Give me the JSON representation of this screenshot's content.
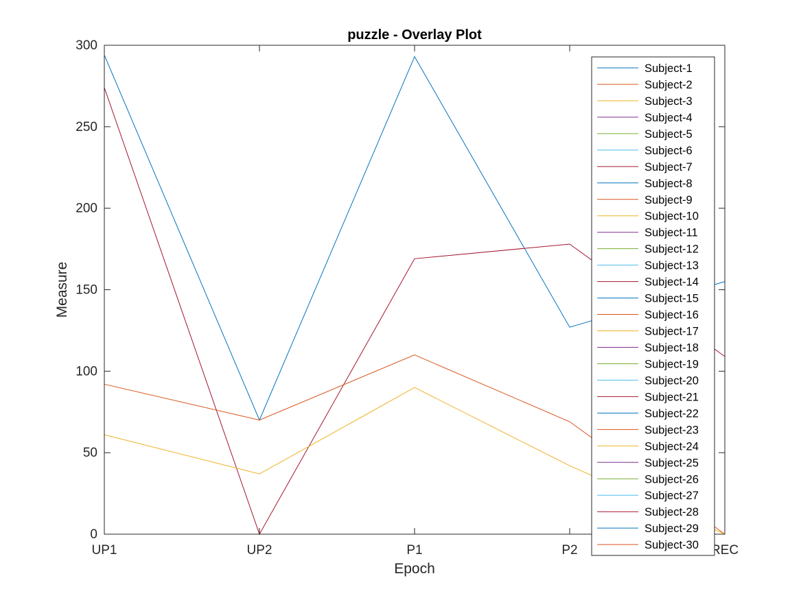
{
  "chart_data": {
    "type": "line",
    "title": "puzzle - Overlay Plot",
    "xlabel": "Epoch",
    "ylabel": "Measure",
    "categories": [
      "UP1",
      "UP2",
      "P1",
      "P2",
      "REC"
    ],
    "ylim": [
      0,
      300
    ],
    "yticks": [
      "0",
      "50",
      "100",
      "150",
      "200",
      "250",
      "300"
    ],
    "grid": false,
    "legend_position": "right-inside",
    "series": [
      {
        "name": "Subject-1",
        "color": "#0072BD",
        "values": [
          294,
          70,
          293,
          127,
          155
        ]
      },
      {
        "name": "Subject-2",
        "color": "#D95319",
        "values": [
          0,
          0,
          0,
          0,
          0
        ]
      },
      {
        "name": "Subject-3",
        "color": "#EDB120",
        "values": [
          0,
          0,
          0,
          0,
          0
        ]
      },
      {
        "name": "Subject-4",
        "color": "#7E2F8E",
        "values": [
          0,
          0,
          0,
          0,
          0
        ]
      },
      {
        "name": "Subject-5",
        "color": "#77AC30",
        "values": [
          0,
          0,
          0,
          0,
          0
        ]
      },
      {
        "name": "Subject-6",
        "color": "#4DBEEE",
        "values": [
          0,
          0,
          0,
          0,
          0
        ]
      },
      {
        "name": "Subject-7",
        "color": "#A2142F",
        "values": [
          0,
          0,
          0,
          0,
          0
        ]
      },
      {
        "name": "Subject-8",
        "color": "#0072BD",
        "values": [
          0,
          0,
          0,
          0,
          0
        ]
      },
      {
        "name": "Subject-9",
        "color": "#D95319",
        "values": [
          0,
          0,
          0,
          0,
          0
        ]
      },
      {
        "name": "Subject-10",
        "color": "#EDB120",
        "values": [
          0,
          0,
          0,
          0,
          0
        ]
      },
      {
        "name": "Subject-11",
        "color": "#7E2F8E",
        "values": [
          0,
          0,
          0,
          0,
          0
        ]
      },
      {
        "name": "Subject-12",
        "color": "#77AC30",
        "values": [
          0,
          0,
          0,
          0,
          0
        ]
      },
      {
        "name": "Subject-13",
        "color": "#4DBEEE",
        "values": [
          0,
          0,
          0,
          0,
          0
        ]
      },
      {
        "name": "Subject-14",
        "color": "#A2142F",
        "values": [
          0,
          0,
          0,
          0,
          0
        ]
      },
      {
        "name": "Subject-15",
        "color": "#0072BD",
        "values": [
          0,
          0,
          0,
          0,
          0
        ]
      },
      {
        "name": "Subject-16",
        "color": "#D95319",
        "values": [
          0,
          0,
          0,
          0,
          0
        ]
      },
      {
        "name": "Subject-17",
        "color": "#EDB120",
        "values": [
          0,
          0,
          0,
          0,
          0
        ]
      },
      {
        "name": "Subject-18",
        "color": "#7E2F8E",
        "values": [
          0,
          0,
          0,
          0,
          0
        ]
      },
      {
        "name": "Subject-19",
        "color": "#77AC30",
        "values": [
          0,
          0,
          0,
          0,
          0
        ]
      },
      {
        "name": "Subject-20",
        "color": "#4DBEEE",
        "values": [
          0,
          0,
          0,
          0,
          0
        ]
      },
      {
        "name": "Subject-21",
        "color": "#A2142F",
        "values": [
          274,
          0,
          169,
          178,
          109
        ]
      },
      {
        "name": "Subject-22",
        "color": "#0072BD",
        "values": [
          0,
          0,
          0,
          0,
          0
        ]
      },
      {
        "name": "Subject-23",
        "color": "#D95319",
        "values": [
          92,
          70,
          110,
          69,
          0
        ]
      },
      {
        "name": "Subject-24",
        "color": "#EDB120",
        "values": [
          61,
          37,
          90,
          42,
          0
        ]
      },
      {
        "name": "Subject-25",
        "color": "#7E2F8E",
        "values": [
          0,
          0,
          0,
          0,
          0
        ]
      },
      {
        "name": "Subject-26",
        "color": "#77AC30",
        "values": [
          0,
          0,
          0,
          0,
          0
        ]
      },
      {
        "name": "Subject-27",
        "color": "#4DBEEE",
        "values": [
          0,
          0,
          0,
          0,
          0
        ]
      },
      {
        "name": "Subject-28",
        "color": "#A2142F",
        "values": [
          0,
          0,
          0,
          0,
          0
        ]
      },
      {
        "name": "Subject-29",
        "color": "#0072BD",
        "values": [
          0,
          0,
          0,
          0,
          0
        ]
      },
      {
        "name": "Subject-30",
        "color": "#D95319",
        "values": [
          0,
          0,
          0,
          0,
          0
        ]
      }
    ]
  }
}
